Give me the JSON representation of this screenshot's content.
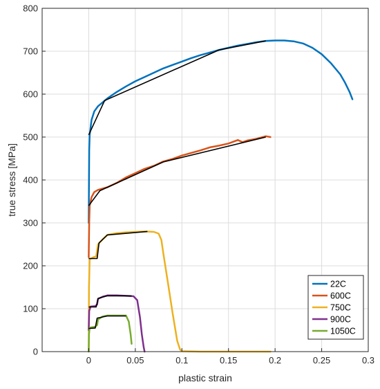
{
  "chart_data": {
    "type": "line",
    "title": "",
    "xlabel": "plastic strain",
    "ylabel": "true stress [MPa]",
    "xlim": [
      -0.05,
      0.3
    ],
    "ylim": [
      0,
      800
    ],
    "xticks": [
      0,
      0.05,
      0.1,
      0.15,
      0.2,
      0.25,
      0.3
    ],
    "xtick_labels": [
      "0",
      "0.05",
      "0.1",
      "0.15",
      "0.2",
      "0.25",
      "0.3"
    ],
    "yticks": [
      0,
      100,
      200,
      300,
      400,
      500,
      600,
      700,
      800
    ],
    "ytick_labels": [
      "0",
      "100",
      "200",
      "300",
      "400",
      "500",
      "600",
      "700",
      "800"
    ],
    "grid": true,
    "legend_position": "bottom-right",
    "series": [
      {
        "name": "22C",
        "color": "#0072BD",
        "points": [
          [
            0,
            300
          ],
          [
            0.0005,
            470
          ],
          [
            0.001,
            505
          ],
          [
            0.003,
            540
          ],
          [
            0.006,
            560
          ],
          [
            0.01,
            572
          ],
          [
            0.02,
            590
          ],
          [
            0.03,
            605
          ],
          [
            0.04,
            618
          ],
          [
            0.05,
            630
          ],
          [
            0.06,
            640
          ],
          [
            0.07,
            650
          ],
          [
            0.08,
            660
          ],
          [
            0.09,
            668
          ],
          [
            0.1,
            676
          ],
          [
            0.11,
            684
          ],
          [
            0.12,
            691
          ],
          [
            0.13,
            697
          ],
          [
            0.14,
            703
          ],
          [
            0.15,
            708
          ],
          [
            0.16,
            713
          ],
          [
            0.17,
            717
          ],
          [
            0.18,
            721
          ],
          [
            0.19,
            724
          ],
          [
            0.2,
            725
          ],
          [
            0.21,
            725
          ],
          [
            0.22,
            723
          ],
          [
            0.23,
            718
          ],
          [
            0.24,
            708
          ],
          [
            0.25,
            693
          ],
          [
            0.26,
            672
          ],
          [
            0.27,
            646
          ],
          [
            0.275,
            627
          ],
          [
            0.28,
            605
          ],
          [
            0.283,
            588
          ]
        ]
      },
      {
        "name": "600C",
        "color": "#D95319",
        "points": [
          [
            0,
            220
          ],
          [
            0.0005,
            300
          ],
          [
            0.001,
            340
          ],
          [
            0.003,
            360
          ],
          [
            0.006,
            372
          ],
          [
            0.01,
            377
          ],
          [
            0.02,
            383
          ],
          [
            0.03,
            393
          ],
          [
            0.04,
            406
          ],
          [
            0.05,
            416
          ],
          [
            0.06,
            426
          ],
          [
            0.07,
            433
          ],
          [
            0.08,
            443
          ],
          [
            0.09,
            449
          ],
          [
            0.1,
            457
          ],
          [
            0.11,
            463
          ],
          [
            0.12,
            469
          ],
          [
            0.13,
            476
          ],
          [
            0.14,
            480
          ],
          [
            0.15,
            485
          ],
          [
            0.16,
            493
          ],
          [
            0.165,
            488
          ],
          [
            0.17,
            492
          ],
          [
            0.18,
            496
          ],
          [
            0.19,
            502
          ],
          [
            0.195,
            500
          ]
        ]
      },
      {
        "name": "750C",
        "color": "#EDB120",
        "points": [
          [
            0,
            0
          ],
          [
            0.0003,
            150
          ],
          [
            0.001,
            215
          ],
          [
            0.005,
            220
          ],
          [
            0.008,
            222
          ],
          [
            0.01,
            250
          ],
          [
            0.015,
            262
          ],
          [
            0.02,
            272
          ],
          [
            0.03,
            276
          ],
          [
            0.04,
            278
          ],
          [
            0.05,
            279
          ],
          [
            0.06,
            280
          ],
          [
            0.07,
            279
          ],
          [
            0.075,
            275
          ],
          [
            0.078,
            260
          ],
          [
            0.08,
            230
          ],
          [
            0.085,
            160
          ],
          [
            0.09,
            90
          ],
          [
            0.095,
            25
          ],
          [
            0.098,
            5
          ],
          [
            0.1,
            1
          ],
          [
            0.12,
            0
          ],
          [
            0.15,
            0
          ],
          [
            0.195,
            0
          ]
        ]
      },
      {
        "name": "900C",
        "color": "#7E2F8E",
        "points": [
          [
            0,
            50
          ],
          [
            0.0005,
            95
          ],
          [
            0.002,
            105
          ],
          [
            0.007,
            106
          ],
          [
            0.009,
            110
          ],
          [
            0.01,
            123
          ],
          [
            0.015,
            128
          ],
          [
            0.02,
            131
          ],
          [
            0.03,
            131
          ],
          [
            0.04,
            130
          ],
          [
            0.048,
            129
          ],
          [
            0.052,
            120
          ],
          [
            0.055,
            80
          ],
          [
            0.057,
            40
          ],
          [
            0.059,
            10
          ],
          [
            0.06,
            0
          ]
        ]
      },
      {
        "name": "1050C",
        "color": "#77AC30",
        "points": [
          [
            0,
            0
          ],
          [
            0.0003,
            40
          ],
          [
            0.001,
            56
          ],
          [
            0.007,
            58
          ],
          [
            0.009,
            62
          ],
          [
            0.01,
            75
          ],
          [
            0.015,
            82
          ],
          [
            0.02,
            84
          ],
          [
            0.03,
            84
          ],
          [
            0.04,
            84
          ],
          [
            0.043,
            70
          ],
          [
            0.045,
            40
          ],
          [
            0.046,
            18
          ]
        ]
      }
    ],
    "fits": [
      {
        "color": "#000000",
        "points": [
          [
            0,
            505
          ],
          [
            0.017,
            585
          ],
          [
            0.14,
            703
          ],
          [
            0.19,
            724
          ]
        ]
      },
      {
        "color": "#000000",
        "points": [
          [
            0,
            340
          ],
          [
            0.012,
            375
          ],
          [
            0.08,
            442
          ],
          [
            0.19,
            500
          ]
        ]
      },
      {
        "color": "#000000",
        "points": [
          [
            0,
            217
          ],
          [
            0.009,
            217
          ],
          [
            0.011,
            253
          ],
          [
            0.02,
            272
          ],
          [
            0.063,
            280
          ]
        ]
      },
      {
        "color": "#000000",
        "points": [
          [
            0,
            104
          ],
          [
            0.008,
            104
          ],
          [
            0.01,
            124
          ],
          [
            0.02,
            130
          ],
          [
            0.046,
            130
          ]
        ]
      },
      {
        "color": "#000000",
        "points": [
          [
            0,
            54
          ],
          [
            0.007,
            55
          ],
          [
            0.009,
            78
          ],
          [
            0.02,
            83
          ],
          [
            0.04,
            83
          ]
        ]
      }
    ]
  }
}
